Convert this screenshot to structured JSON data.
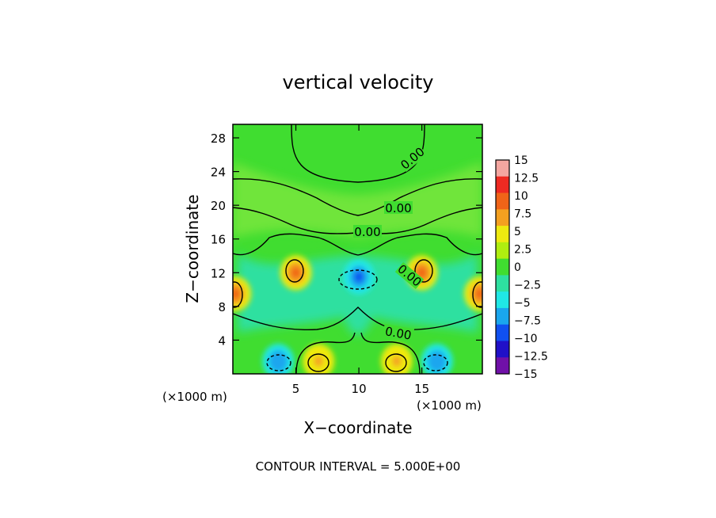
{
  "chart_data": {
    "type": "heatmap",
    "title": "vertical velocity",
    "xlabel": "X−coordinate",
    "ylabel": "Z−coordinate",
    "x_unit_left": "(×1000 m)",
    "x_unit_right": "(×1000 m)",
    "x_ticks": [
      {
        "value": 5,
        "label": "5"
      },
      {
        "value": 10,
        "label": "10"
      },
      {
        "value": 15,
        "label": "15"
      }
    ],
    "y_ticks": [
      {
        "value": 4,
        "label": "4"
      },
      {
        "value": 8,
        "label": "8"
      },
      {
        "value": 12,
        "label": "12"
      },
      {
        "value": 16,
        "label": "16"
      },
      {
        "value": 20,
        "label": "20"
      },
      {
        "value": 24,
        "label": "24"
      },
      {
        "value": 28,
        "label": "28"
      }
    ],
    "xlim": [
      0,
      19.8
    ],
    "ylim": [
      0,
      29.6
    ],
    "contour_labels": [
      "0.00",
      "0.00",
      "0.00",
      "0.00",
      "0.00"
    ],
    "contour_interval_text": "CONTOUR INTERVAL = 5.000E+00",
    "colorbar": {
      "levels": [
        15,
        12.5,
        10,
        7.5,
        5,
        2.5,
        0,
        -2.5,
        -5,
        -7.5,
        -10,
        -12.5,
        -15
      ],
      "labels": [
        "15",
        "12.5",
        "10",
        "7.5",
        "5",
        "2.5",
        "0",
        "−2.5",
        "−5",
        "−7.5",
        "−10",
        "−12.5",
        "−15"
      ],
      "colors": [
        "#f4a6a0",
        "#ee2a22",
        "#f06418",
        "#f4a020",
        "#eeea10",
        "#b0ee10",
        "#40dd30",
        "#2ee0a0",
        "#20e8e6",
        "#1aa6ee",
        "#1050f0",
        "#2010c8",
        "#7010a8"
      ]
    },
    "features": [
      {
        "label": "updraft",
        "x": 0.2,
        "z": 9.5,
        "w": 10
      },
      {
        "label": "updraft",
        "x": 5.0,
        "z": 12.0,
        "w": 11
      },
      {
        "label": "updraft",
        "x": 15.0,
        "z": 12.0,
        "w": 11
      },
      {
        "label": "updraft",
        "x": 19.6,
        "z": 9.5,
        "w": 10
      },
      {
        "label": "updraft",
        "x": 6.8,
        "z": 1.5,
        "w": 9
      },
      {
        "label": "updraft",
        "x": 13.0,
        "z": 1.5,
        "w": 9
      },
      {
        "label": "downdraft",
        "x": 10.0,
        "z": 11.5,
        "w": -9
      },
      {
        "label": "downdraft",
        "x": 3.6,
        "z": 1.5,
        "w": -7
      },
      {
        "label": "downdraft",
        "x": 16.2,
        "z": 1.5,
        "w": -7
      }
    ]
  }
}
